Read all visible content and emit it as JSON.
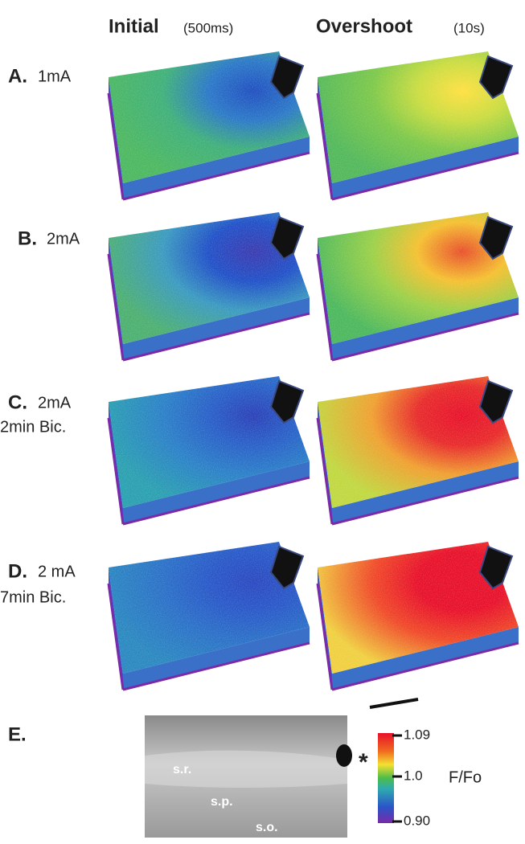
{
  "columns": [
    {
      "title": "Initial",
      "subtitle": "(500ms)"
    },
    {
      "title": "Overshoot",
      "subtitle": "(10s)"
    }
  ],
  "rows": [
    {
      "letter": "A.",
      "lines": [
        "1mA"
      ]
    },
    {
      "letter": "B.",
      "lines": [
        "2mA"
      ]
    },
    {
      "letter": "C.",
      "lines": [
        "2mA",
        "2min Bic."
      ]
    },
    {
      "letter": "D.",
      "lines": [
        "2 mA",
        "7min Bic."
      ]
    }
  ],
  "panel_e": {
    "letter": "E.",
    "labels": [
      "s.r.",
      "s.p.",
      "s.o."
    ],
    "marker": "*",
    "colorbar": {
      "ticks": [
        "1.09",
        "1.0",
        "0.90"
      ],
      "label": "F/Fo"
    }
  }
}
